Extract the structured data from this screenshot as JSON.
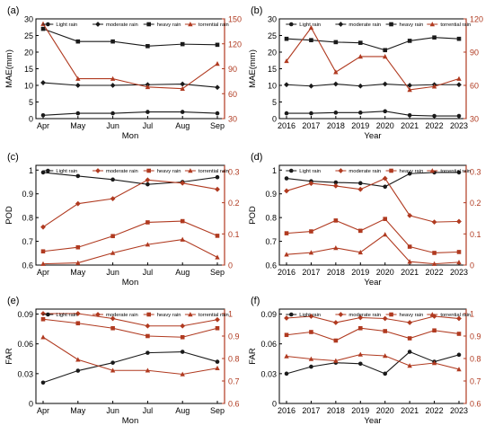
{
  "figure": {
    "black_color": "#1a1a1a",
    "red_color": "#b03a20"
  },
  "chart_data": [
    {
      "id": "a",
      "panel_label": "(a)",
      "type": "line",
      "xlabel": "Mon",
      "x": [
        "Apr",
        "May",
        "Jun",
        "Jul",
        "Aug",
        "Sep"
      ],
      "ylabel_left": "MAE(mm)",
      "ylim_left": [
        0,
        30
      ],
      "yticks_left": [
        0,
        5,
        10,
        15,
        20,
        25,
        30
      ],
      "ylabel_right": "",
      "ylim_right": [
        30,
        150
      ],
      "yticks_right": [
        30,
        60,
        90,
        120,
        150
      ],
      "legend": [
        "Light rain",
        "moderate rain",
        "heavy rain",
        "torrential rain"
      ],
      "legend_placement": "top",
      "series": [
        {
          "name": "Light rain",
          "axis": "left",
          "color": "#1a1a1a",
          "values": [
            1.0,
            1.6,
            1.6,
            2.0,
            2.0,
            1.6
          ]
        },
        {
          "name": "moderate rain",
          "axis": "left",
          "color": "#1a1a1a",
          "values": [
            10.8,
            10.0,
            10.0,
            10.2,
            10.4,
            9.4
          ]
        },
        {
          "name": "heavy rain",
          "axis": "left",
          "color": "#1a1a1a",
          "values": [
            27.0,
            23.2,
            23.2,
            21.8,
            22.4,
            22.2
          ]
        },
        {
          "name": "torrential rain",
          "axis": "right",
          "color": "#b03a20",
          "values": [
            144,
            78,
            78,
            68,
            66,
            96
          ]
        }
      ]
    },
    {
      "id": "b",
      "panel_label": "(b)",
      "type": "line",
      "xlabel": "Year",
      "x": [
        "2016",
        "2017",
        "2018",
        "2019",
        "2020",
        "2021",
        "2022",
        "2023"
      ],
      "ylabel_left": "MAE(mm)",
      "ylim_left": [
        0,
        30
      ],
      "yticks_left": [
        0,
        5,
        10,
        15,
        20,
        25,
        30
      ],
      "ylabel_right": "",
      "ylim_right": [
        30,
        120
      ],
      "yticks_right": [
        30,
        60,
        90,
        120
      ],
      "legend": [
        "Light rain",
        "moderate rain",
        "heavy rain",
        "torrential rain"
      ],
      "legend_placement": "top",
      "series": [
        {
          "name": "Light rain",
          "axis": "left",
          "color": "#1a1a1a",
          "values": [
            1.6,
            1.6,
            1.8,
            1.8,
            2.2,
            1.0,
            0.8,
            0.8
          ]
        },
        {
          "name": "moderate rain",
          "axis": "left",
          "color": "#1a1a1a",
          "values": [
            10.2,
            9.8,
            10.4,
            9.8,
            10.4,
            10.0,
            10.2,
            10.2
          ]
        },
        {
          "name": "heavy rain",
          "axis": "left",
          "color": "#1a1a1a",
          "values": [
            24.0,
            23.6,
            23.0,
            22.8,
            20.6,
            23.4,
            24.4,
            24.0
          ]
        },
        {
          "name": "torrential rain",
          "axis": "right",
          "color": "#b03a20",
          "values": [
            82,
            112,
            72,
            86,
            86,
            56,
            59,
            66
          ]
        }
      ]
    },
    {
      "id": "c",
      "panel_label": "(c)",
      "type": "line",
      "xlabel": "Mon",
      "x": [
        "Apr",
        "May",
        "Jun",
        "Jul",
        "Aug",
        "Sep"
      ],
      "ylabel_left": "POD",
      "ylim_left": [
        0.6,
        1.02
      ],
      "yticks_left": [
        0.6,
        0.7,
        0.8,
        0.9,
        1
      ],
      "ylabel_right": "",
      "ylim_right": [
        0,
        0.32
      ],
      "yticks_right": [
        0,
        0.1,
        0.2,
        0.3
      ],
      "legend": [
        "Light rain",
        "moderate rain",
        "heavy rain",
        "torrential rain"
      ],
      "legend_placement": "top",
      "series": [
        {
          "name": "Light rain",
          "axis": "left",
          "color": "#1a1a1a",
          "values": [
            0.99,
            0.975,
            0.96,
            0.94,
            0.95,
            0.97
          ]
        },
        {
          "name": "moderate rain",
          "axis": "right",
          "color": "#b03a20",
          "values": [
            0.122,
            0.197,
            0.213,
            0.273,
            0.263,
            0.243
          ]
        },
        {
          "name": "heavy rain",
          "axis": "right",
          "color": "#b03a20",
          "values": [
            0.044,
            0.057,
            0.093,
            0.137,
            0.141,
            0.094
          ]
        },
        {
          "name": "torrential rain",
          "axis": "right",
          "color": "#b03a20",
          "values": [
            0.004,
            0.007,
            0.039,
            0.066,
            0.082,
            0.025
          ]
        }
      ]
    },
    {
      "id": "d",
      "panel_label": "(d)",
      "type": "line",
      "xlabel": "Year",
      "x": [
        "2016",
        "2017",
        "2018",
        "2019",
        "2020",
        "2021",
        "2022",
        "2023"
      ],
      "ylabel_left": "POD",
      "ylim_left": [
        0.6,
        1.02
      ],
      "yticks_left": [
        0.6,
        0.7,
        0.8,
        0.9,
        1
      ],
      "ylabel_right": "",
      "ylim_right": [
        0,
        0.32
      ],
      "yticks_right": [
        0,
        0.1,
        0.2,
        0.3
      ],
      "legend": [
        "Light rain",
        "moderate rain",
        "heavy rain",
        "torrential rain"
      ],
      "legend_placement": "top",
      "series": [
        {
          "name": "Light rain",
          "axis": "left",
          "color": "#1a1a1a",
          "values": [
            0.965,
            0.953,
            0.948,
            0.945,
            0.93,
            0.985,
            0.99,
            0.99
          ]
        },
        {
          "name": "moderate rain",
          "axis": "right",
          "color": "#b03a20",
          "values": [
            0.238,
            0.262,
            0.254,
            0.243,
            0.278,
            0.159,
            0.138,
            0.14
          ]
        },
        {
          "name": "heavy rain",
          "axis": "right",
          "color": "#b03a20",
          "values": [
            0.102,
            0.108,
            0.143,
            0.11,
            0.148,
            0.059,
            0.039,
            0.042
          ]
        },
        {
          "name": "torrential rain",
          "axis": "right",
          "color": "#b03a20",
          "values": [
            0.034,
            0.04,
            0.055,
            0.041,
            0.098,
            0.011,
            0.004,
            0.009
          ]
        }
      ]
    },
    {
      "id": "e",
      "panel_label": "(e)",
      "type": "line",
      "xlabel": "Mon",
      "x": [
        "Apr",
        "May",
        "Jun",
        "Jul",
        "Aug",
        "Sep"
      ],
      "ylabel_left": "FAR",
      "ylim_left": [
        0,
        0.095
      ],
      "yticks_left": [
        0,
        0.03,
        0.06,
        0.09
      ],
      "ylabel_right": "",
      "ylim_right": [
        0.6,
        1.02
      ],
      "yticks_right": [
        0.6,
        0.7,
        0.8,
        0.9,
        1
      ],
      "legend": [
        "Light rain",
        "moderate rain",
        "heavy rain",
        "torrential rain"
      ],
      "legend_placement": "top",
      "series": [
        {
          "name": "Light rain",
          "axis": "left",
          "color": "#1a1a1a",
          "values": [
            0.021,
            0.033,
            0.041,
            0.051,
            0.052,
            0.042
          ]
        },
        {
          "name": "moderate rain",
          "axis": "right",
          "color": "#b03a20",
          "values": [
            1.0,
            1.0,
            0.978,
            0.945,
            0.945,
            0.973
          ]
        },
        {
          "name": "heavy rain",
          "axis": "right",
          "color": "#b03a20",
          "values": [
            0.975,
            0.957,
            0.935,
            0.9,
            0.895,
            0.935
          ]
        },
        {
          "name": "torrential rain",
          "axis": "right",
          "color": "#b03a20",
          "values": [
            0.895,
            0.795,
            0.747,
            0.747,
            0.73,
            0.757
          ]
        }
      ]
    },
    {
      "id": "f",
      "panel_label": "(f)",
      "type": "line",
      "xlabel": "Year",
      "x": [
        "2016",
        "2017",
        "2018",
        "2019",
        "2020",
        "2021",
        "2022",
        "2023"
      ],
      "ylabel_left": "FAR",
      "ylim_left": [
        0,
        0.095
      ],
      "yticks_left": [
        0,
        0.03,
        0.06,
        0.09
      ],
      "ylabel_right": "",
      "ylim_right": [
        0.6,
        1.02
      ],
      "yticks_right": [
        0.6,
        0.7,
        0.8,
        0.9,
        1
      ],
      "legend": [
        "Light rain",
        "moderate rain",
        "heavy rain",
        "torrential rain"
      ],
      "legend_placement": "top",
      "series": [
        {
          "name": "Light rain",
          "axis": "left",
          "color": "#1a1a1a",
          "values": [
            0.03,
            0.037,
            0.041,
            0.04,
            0.03,
            0.052,
            0.042,
            0.049
          ]
        },
        {
          "name": "moderate rain",
          "axis": "right",
          "color": "#b03a20",
          "values": [
            0.98,
            0.988,
            0.96,
            0.982,
            0.978,
            0.96,
            0.988,
            0.978
          ]
        },
        {
          "name": "heavy rain",
          "axis": "right",
          "color": "#b03a20",
          "values": [
            0.905,
            0.918,
            0.88,
            0.935,
            0.922,
            0.89,
            0.925,
            0.91
          ]
        },
        {
          "name": "torrential rain",
          "axis": "right",
          "color": "#b03a20",
          "values": [
            0.81,
            0.798,
            0.79,
            0.818,
            0.812,
            0.768,
            0.78,
            0.752
          ]
        }
      ]
    }
  ]
}
